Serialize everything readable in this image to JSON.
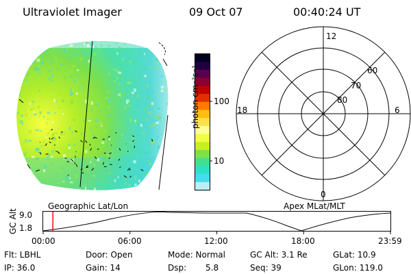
{
  "header": {
    "instrument": "Ultraviolet Imager",
    "date": "09 Oct 07",
    "time": "00:40:24 UT"
  },
  "colorbar": {
    "unit_label": "photon cm⁻²s⁻¹",
    "ticks": [
      "100",
      "10"
    ],
    "colors": [
      "#000022",
      "#220040",
      "#5a0050",
      "#8a0030",
      "#c00000",
      "#e03000",
      "#ff7a00",
      "#ffbe10",
      "#ffe04a",
      "#ffff99",
      "#f0ff40",
      "#c6f020",
      "#7ee048",
      "#40e090",
      "#2de0c8",
      "#46dcee",
      "#bdeef6"
    ]
  },
  "polar_plot": {
    "lat_labels": [
      "80",
      "70",
      "60"
    ],
    "mlt_labels": [
      "12",
      "18",
      "6",
      "0"
    ]
  },
  "labels": {
    "left": "Geographic Lat/Lon",
    "right": "Apex MLat/MLT"
  },
  "altitude_track": {
    "axis_label": "GC Alt",
    "y_ticks": [
      "9.0",
      "1.8"
    ],
    "x_ticks": [
      "00:00",
      "06:00",
      "12:00",
      "18:00",
      "23:59"
    ],
    "current_marker_fraction": 0.028
  },
  "info": {
    "flt": "Flt: LBHL",
    "ip": "IP: 36.0",
    "door": "Door: Open",
    "gain": "Gain: 14",
    "mode": "Mode: Normal",
    "dsp_label": "Dsp:",
    "dsp_value": "5.8",
    "gcalt": "GC Alt: 3.1 Re",
    "seq": "Seq: 39",
    "glat": "GLat: 10.9",
    "glon": "GLon: 119.0"
  },
  "colors": {
    "marker": "#ff0000",
    "background": "#ffffff"
  }
}
